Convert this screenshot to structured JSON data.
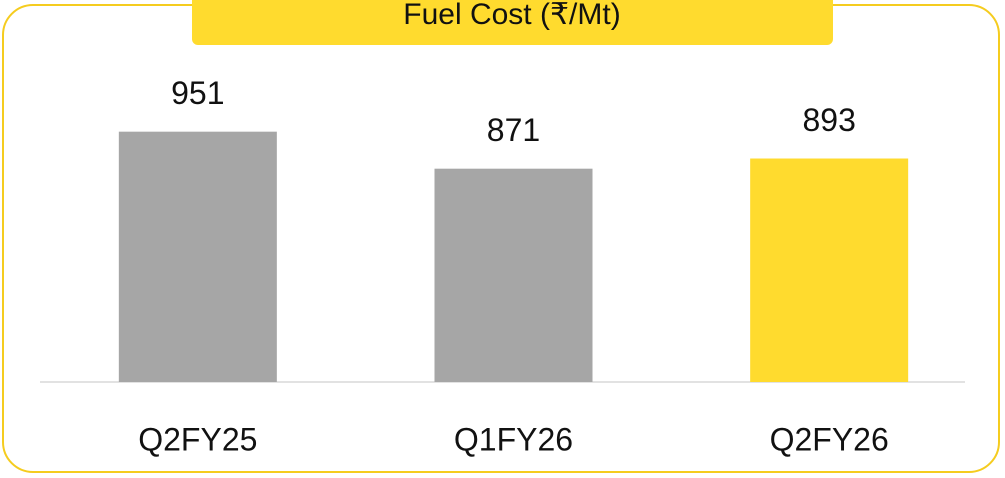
{
  "chart_data": {
    "type": "bar",
    "title": "Fuel Cost (₹/Mt)",
    "categories": [
      "Q2FY25",
      "Q1FY26",
      "Q2FY26"
    ],
    "values": [
      951,
      871,
      893
    ],
    "colors": [
      "#a6a6a6",
      "#a6a6a6",
      "#ffdb2e"
    ],
    "ylim": [
      410,
      1000
    ]
  }
}
